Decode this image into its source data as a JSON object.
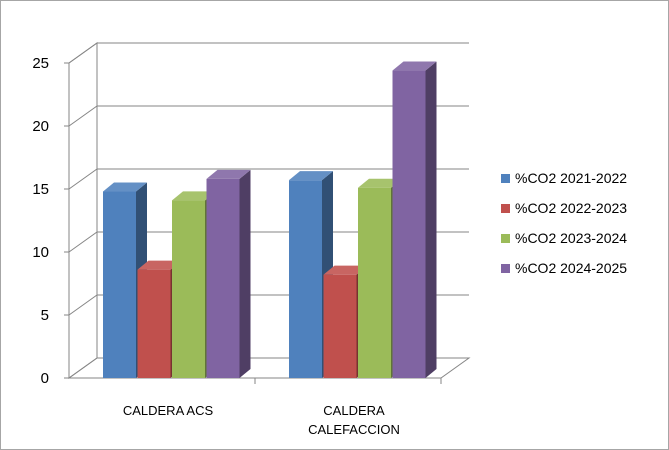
{
  "chart_data": {
    "type": "bar",
    "style": "3d-clustered-column",
    "categories": [
      "CALDERA ACS",
      "CALDERA\nCALEFACCION"
    ],
    "series": [
      {
        "name": "%CO2 2021-2022",
        "color": "#4f81bd",
        "values": [
          14.8,
          15.7
        ]
      },
      {
        "name": "%CO2 2022-2023",
        "color": "#c0504d",
        "values": [
          8.6,
          8.2
        ]
      },
      {
        "name": "%CO2 2023-2024",
        "color": "#9bbb59",
        "values": [
          14.1,
          15.1
        ]
      },
      {
        "name": "%CO2 2024-2025",
        "color": "#8064a2",
        "values": [
          15.8,
          24.4
        ]
      }
    ],
    "yticks": [
      "0",
      "5",
      "10",
      "15",
      "20",
      "25"
    ],
    "ylim": [
      0,
      25
    ],
    "grid": true,
    "legend_position": "right"
  }
}
